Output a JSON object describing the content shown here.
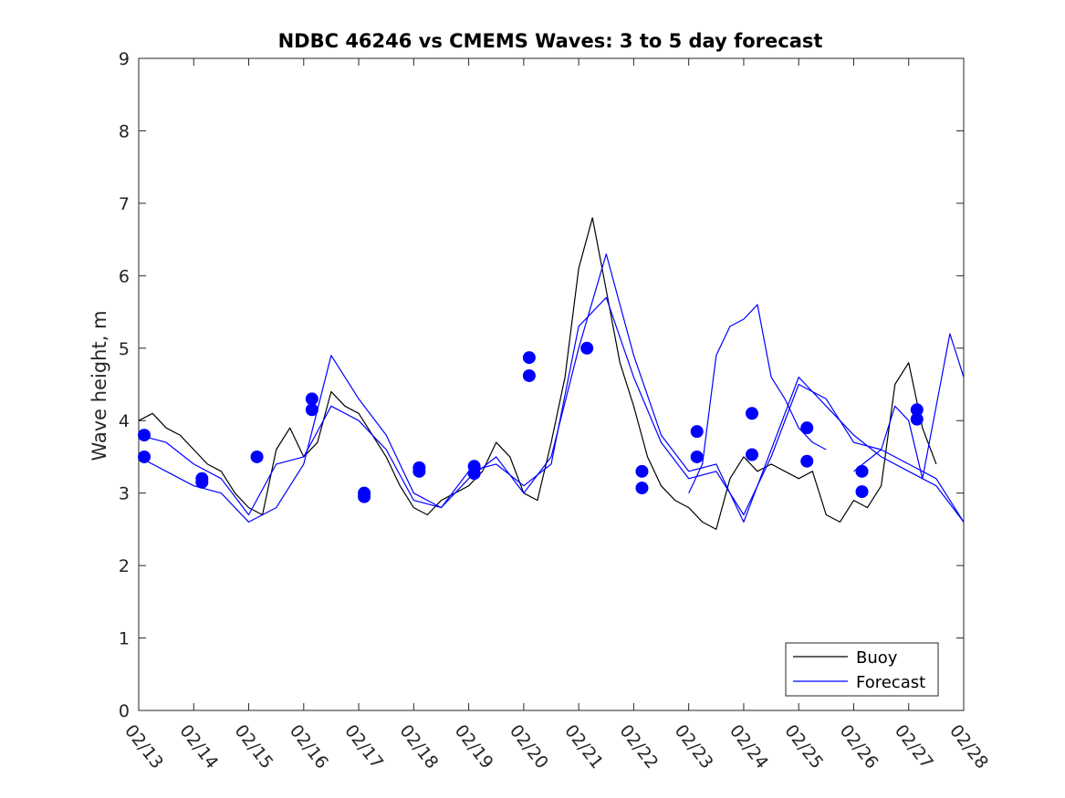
{
  "chart_data": {
    "type": "line",
    "title": "NDBC 46246 vs CMEMS Waves: 3 to 5 day forecast",
    "xlabel": "",
    "ylabel": "Wave height, m",
    "ylim": [
      0,
      9
    ],
    "xlim": [
      0,
      15
    ],
    "yticks": [
      "0",
      "1",
      "2",
      "3",
      "4",
      "5",
      "6",
      "7",
      "8",
      "9"
    ],
    "xticks": [
      "02/13",
      "02/14",
      "02/15",
      "02/16",
      "02/17",
      "02/18",
      "02/19",
      "02/20",
      "02/21",
      "02/22",
      "02/23",
      "02/24",
      "02/25",
      "02/26",
      "02/27",
      "02/28"
    ],
    "legend_position": "bottom-right",
    "colors": {
      "buoy": "#000000",
      "forecast": "#0000ff",
      "axis": "#262626"
    },
    "series": [
      {
        "name": "Buoy",
        "style": "line",
        "x": [
          0.0,
          0.25,
          0.5,
          0.75,
          1.0,
          1.25,
          1.5,
          1.75,
          2.0,
          2.25,
          2.5,
          2.75,
          3.0,
          3.25,
          3.5,
          3.75,
          4.0,
          4.25,
          4.5,
          4.75,
          5.0,
          5.25,
          5.5,
          5.75,
          6.0,
          6.25,
          6.5,
          6.75,
          7.0,
          7.25,
          7.5,
          7.75,
          8.0,
          8.25,
          8.5,
          8.75,
          9.0,
          9.25,
          9.5,
          9.75,
          10.0,
          10.25,
          10.5,
          10.75,
          11.0,
          11.25,
          11.5,
          11.75,
          12.0,
          12.25,
          12.5,
          12.75,
          13.0,
          13.25,
          13.5,
          13.75,
          14.0,
          14.25,
          14.5,
          14.75,
          15.0
        ],
        "values": [
          4.0,
          4.1,
          3.9,
          3.8,
          3.6,
          3.4,
          3.3,
          3.0,
          2.8,
          2.7,
          3.6,
          3.9,
          3.5,
          3.7,
          4.4,
          4.2,
          4.1,
          3.8,
          3.5,
          3.1,
          2.8,
          2.7,
          2.9,
          3.0,
          3.1,
          3.3,
          3.7,
          3.5,
          3.0,
          2.9,
          3.7,
          4.6,
          6.1,
          6.8,
          5.8,
          4.8,
          4.2,
          3.5,
          3.1,
          2.9,
          2.8,
          2.6,
          2.5,
          3.2,
          3.5,
          3.3,
          3.4,
          3.3,
          3.2,
          3.3,
          2.7,
          2.6,
          2.9,
          2.8,
          3.1,
          4.5,
          4.8,
          3.9,
          3.4,
          null,
          null
        ]
      },
      {
        "name": "Forecast",
        "style": "line",
        "x": [
          0.0,
          0.5,
          1.0,
          1.5,
          2.0,
          2.5,
          3.0,
          3.5,
          4.0,
          4.5,
          5.0,
          5.5,
          6.0,
          6.5,
          7.0,
          7.5,
          8.0,
          8.5,
          9.0,
          9.5,
          10.0,
          10.5,
          11.0,
          11.5,
          12.0,
          12.5,
          13.0,
          13.5,
          14.0,
          14.5,
          15.0
        ],
        "values": [
          3.8,
          3.7,
          3.4,
          3.2,
          2.7,
          3.4,
          3.5,
          4.2,
          4.0,
          3.6,
          2.9,
          2.8,
          3.3,
          3.4,
          3.1,
          3.4,
          5.3,
          5.7,
          4.6,
          3.7,
          3.2,
          3.3,
          2.7,
          3.5,
          4.5,
          4.3,
          3.7,
          3.6,
          3.4,
          3.2,
          2.6
        ]
      },
      {
        "name": "Forecast",
        "style": "line",
        "x": [
          0.0,
          0.5,
          1.0,
          1.5,
          2.0,
          2.5,
          3.0,
          3.5,
          4.0,
          4.5,
          5.0,
          5.5,
          6.0,
          6.5,
          7.0,
          7.5,
          8.0,
          8.5,
          9.0,
          9.5,
          10.0,
          10.5,
          11.0,
          11.5,
          12.0,
          12.5,
          13.0,
          13.5,
          14.0,
          14.5,
          15.0
        ],
        "values": [
          3.5,
          3.3,
          3.1,
          3.0,
          2.6,
          2.8,
          3.4,
          4.9,
          4.3,
          3.8,
          3.0,
          2.8,
          3.2,
          3.5,
          3.0,
          3.5,
          5.0,
          6.3,
          4.9,
          3.8,
          3.3,
          3.4,
          2.6,
          3.6,
          4.6,
          4.2,
          3.8,
          3.5,
          3.3,
          3.1,
          2.6
        ]
      },
      {
        "name": "Forecast",
        "style": "line",
        "x": [
          10.0,
          10.25,
          10.5,
          10.75,
          11.0,
          11.25,
          11.5,
          11.75,
          12.0,
          12.25,
          12.5
        ],
        "values": [
          3.0,
          3.4,
          4.9,
          5.3,
          5.4,
          5.6,
          4.6,
          4.3,
          3.9,
          3.7,
          3.6
        ]
      },
      {
        "name": "Forecast",
        "style": "line",
        "x": [
          13.0,
          13.5,
          13.75,
          14.0,
          14.25,
          14.5,
          14.75,
          15.0
        ],
        "values": [
          3.3,
          3.6,
          4.2,
          4.0,
          3.2,
          4.2,
          5.2,
          4.6
        ]
      },
      {
        "name": "Forecast markers",
        "style": "marker",
        "x": [
          0.1,
          0.1,
          1.15,
          1.15,
          2.15,
          3.15,
          3.15,
          4.1,
          4.1,
          5.1,
          5.1,
          6.1,
          6.1,
          7.1,
          7.1,
          8.15,
          9.15,
          9.15,
          10.15,
          10.15,
          11.15,
          11.15,
          12.15,
          12.15,
          13.15,
          13.15,
          14.15,
          14.15
        ],
        "values": [
          3.8,
          3.5,
          3.2,
          3.15,
          3.5,
          4.3,
          4.15,
          3.0,
          2.95,
          3.35,
          3.3,
          3.37,
          3.27,
          4.87,
          4.62,
          5.0,
          3.3,
          3.07,
          3.85,
          3.5,
          4.1,
          3.53,
          3.9,
          3.44,
          3.3,
          3.02,
          4.15,
          4.02
        ]
      }
    ],
    "legend": {
      "buoy_label": "Buoy",
      "forecast_label": "Forecast"
    }
  }
}
